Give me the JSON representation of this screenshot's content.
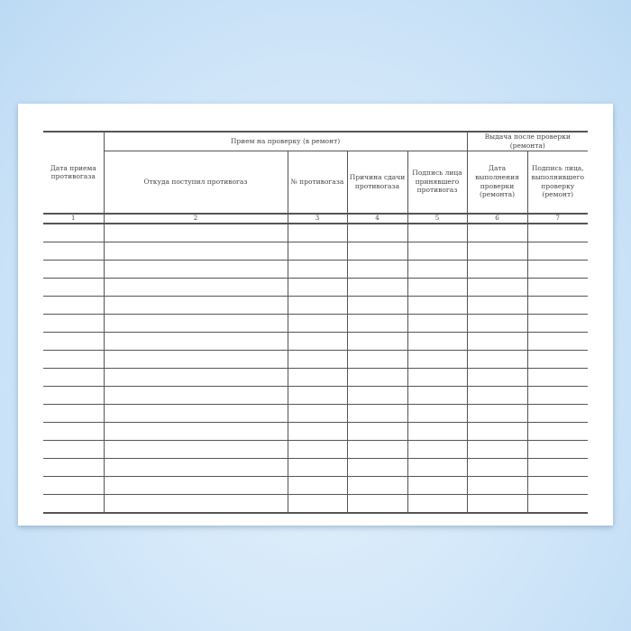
{
  "form": {
    "group_headers": {
      "receipt": "Прием на проверку (в ремонт)",
      "issue": "Выдача после проверки (ремонта)"
    },
    "columns": [
      {
        "number": "1",
        "label": "Дата приема противогаза"
      },
      {
        "number": "2",
        "label": "Откуда поступил противогаз"
      },
      {
        "number": "3",
        "label": "№ противогаза"
      },
      {
        "number": "4",
        "label": "Причина сдачи противогаза"
      },
      {
        "number": "5",
        "label": "Подпись лица принявшего противогаз"
      },
      {
        "number": "6",
        "label": "Дата выполнения проверки (ремонта)"
      },
      {
        "number": "7",
        "label": "Подпись лица, выполнившего проверку (ремонт)"
      }
    ],
    "empty_rows": 16
  }
}
